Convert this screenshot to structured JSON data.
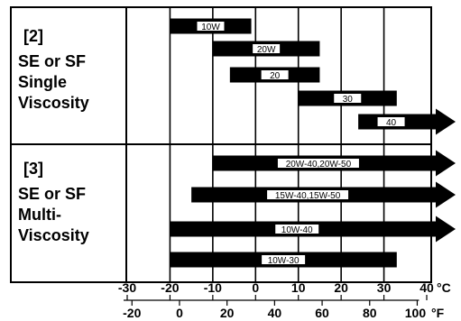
{
  "chart_data": {
    "type": "bar",
    "orientation": "horizontal-range",
    "title": "",
    "xlabel": "",
    "ylabel": "",
    "xlim_c": [
      -30,
      40
    ],
    "xlim_f": [
      -20,
      100
    ],
    "celsius_ticks": [
      "-30",
      "-20",
      "-10",
      "0",
      "10",
      "20",
      "30",
      "40"
    ],
    "fahrenheit_ticks": [
      "-20",
      "0",
      "20",
      "40",
      "60",
      "80",
      "100"
    ],
    "celsius_unit": "°C",
    "fahrenheit_unit": "°F",
    "groups": [
      {
        "number": "[2]",
        "lines": [
          "SE or SF",
          "Single",
          "Viscosity"
        ],
        "bars": [
          {
            "label": "10W",
            "start_c": -20,
            "end_c": -1,
            "arrow": false
          },
          {
            "label": "20W",
            "start_c": -10,
            "end_c": 15,
            "arrow": false
          },
          {
            "label": "20",
            "start_c": -6,
            "end_c": 15,
            "arrow": false
          },
          {
            "label": "30",
            "start_c": 10,
            "end_c": 33,
            "arrow": false
          },
          {
            "label": "40",
            "start_c": 24,
            "end_c": 40,
            "arrow": true
          }
        ]
      },
      {
        "number": "[3]",
        "lines": [
          "SE or SF",
          "Multi-",
          "Viscosity"
        ],
        "bars": [
          {
            "label": "20W-40,20W-50",
            "start_c": -10,
            "end_c": 40,
            "arrow": true
          },
          {
            "label": "15W-40,15W-50",
            "start_c": -15,
            "end_c": 40,
            "arrow": true
          },
          {
            "label": "10W-40",
            "start_c": -20,
            "end_c": 40,
            "arrow": true
          },
          {
            "label": "10W-30",
            "start_c": -20,
            "end_c": 33,
            "arrow": false
          }
        ]
      }
    ]
  }
}
